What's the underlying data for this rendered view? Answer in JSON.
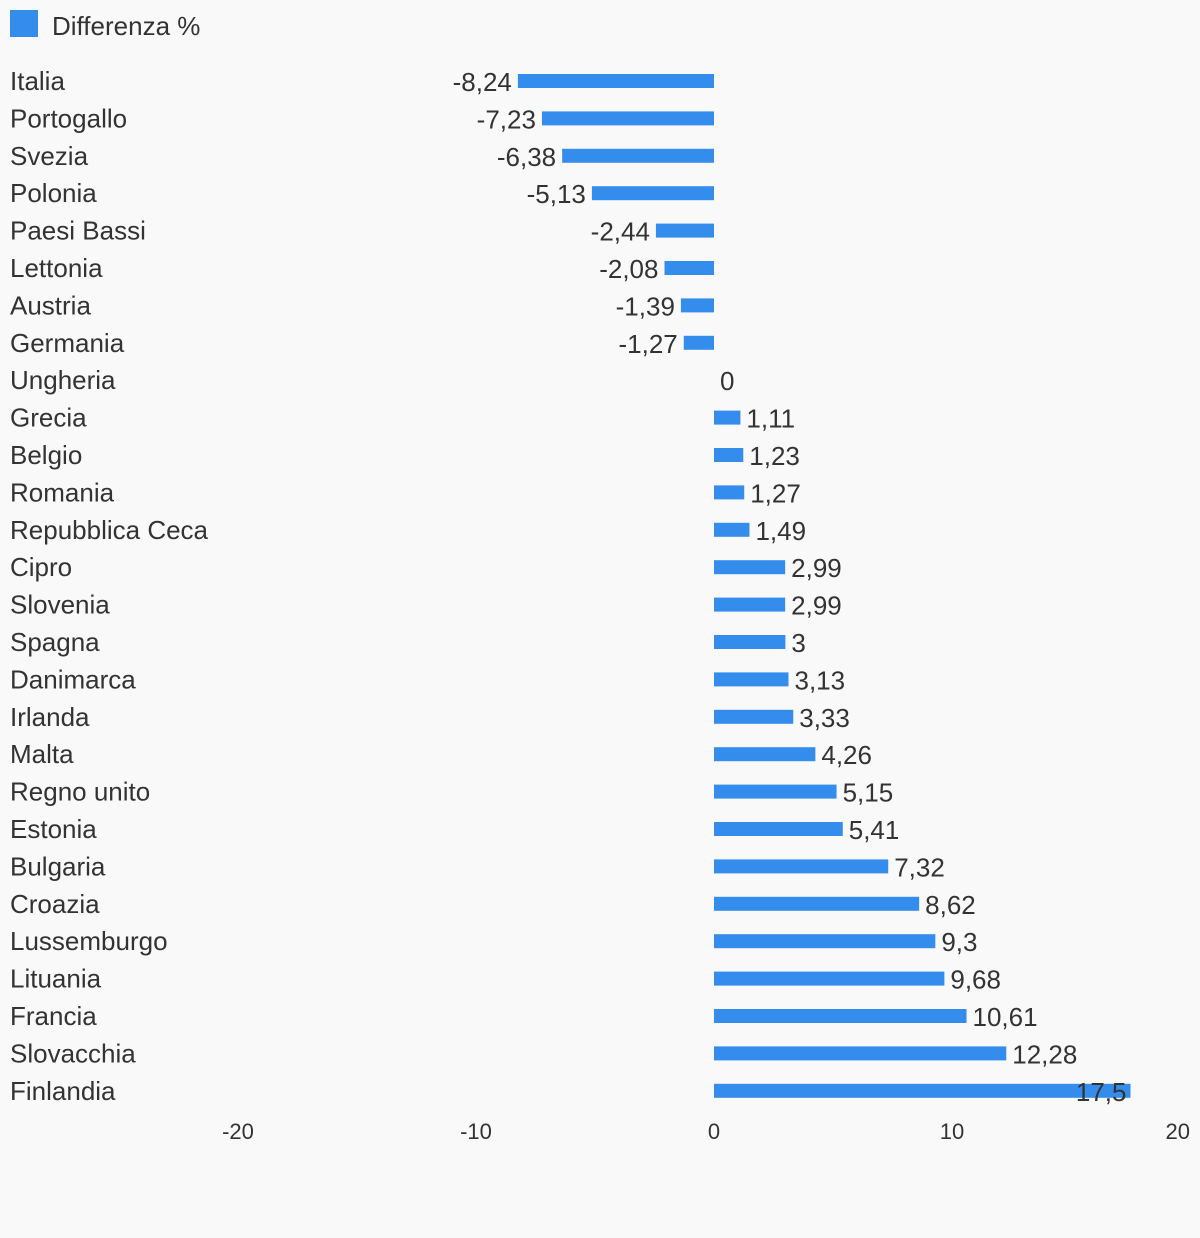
{
  "chart_data": {
    "type": "bar",
    "orientation": "horizontal",
    "legend": {
      "label": "Differenza %",
      "color": "#348ded",
      "placement": "top-left"
    },
    "categories": [
      "Italia",
      "Portogallo",
      "Svezia",
      "Polonia",
      "Paesi Bassi",
      "Lettonia",
      "Austria",
      "Germania",
      "Ungheria",
      "Grecia",
      "Belgio",
      "Romania",
      "Repubblica Ceca",
      "Cipro",
      "Slovenia",
      "Spagna",
      "Danimarca",
      "Irlanda",
      "Malta",
      "Regno unito",
      "Estonia",
      "Bulgaria",
      "Croazia",
      "Lussemburgo",
      "Lituania",
      "Francia",
      "Slovacchia",
      "Finlandia"
    ],
    "series": [
      {
        "name": "Differenza %",
        "color": "#348ded",
        "values": [
          -8.24,
          -7.23,
          -6.38,
          -5.13,
          -2.44,
          -2.08,
          -1.39,
          -1.27,
          0,
          1.11,
          1.23,
          1.27,
          1.49,
          2.99,
          2.99,
          3,
          3.13,
          3.33,
          4.26,
          5.15,
          5.41,
          7.32,
          8.62,
          9.3,
          9.68,
          10.61,
          12.28,
          17.5
        ],
        "value_labels": [
          "-8,24",
          "-7,23",
          "-6,38",
          "-5,13",
          "-2,44",
          "-2,08",
          "-1,39",
          "-1,27",
          "0",
          "1,11",
          "1,23",
          "1,27",
          "1,49",
          "2,99",
          "2,99",
          "3",
          "3,13",
          "3,33",
          "4,26",
          "5,15",
          "5,41",
          "7,32",
          "8,62",
          "9,3",
          "9,68",
          "10,61",
          "12,28",
          "17,5"
        ]
      }
    ],
    "xlim": [
      -20,
      20
    ],
    "x_ticks": [
      -20,
      -10,
      0,
      10,
      20
    ],
    "x_tick_labels": [
      "-20",
      "-10",
      "0",
      "10",
      "20"
    ],
    "grid": false
  }
}
